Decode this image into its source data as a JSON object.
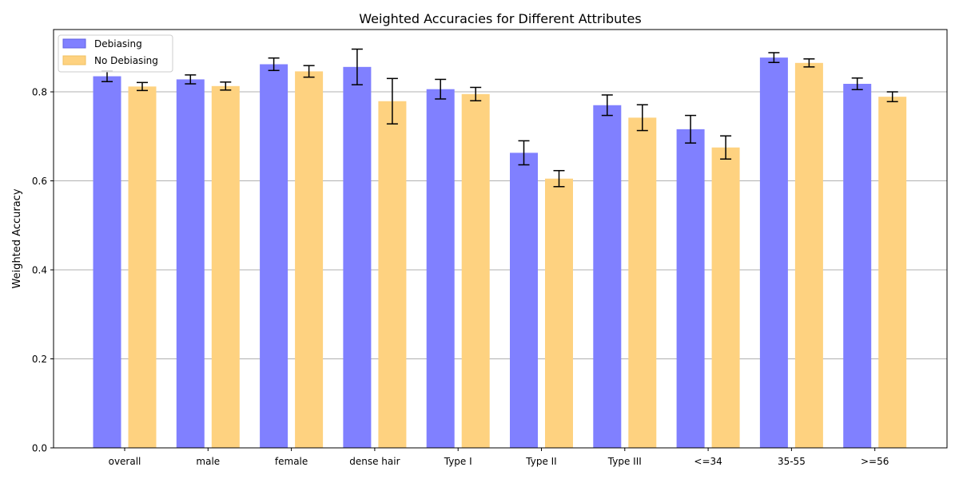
{
  "chart_data": {
    "type": "bar",
    "title": "Weighted Accuracies for Different Attributes",
    "xlabel": "",
    "ylabel": "Weighted Accuracy",
    "ylim": [
      0,
      0.94
    ],
    "yticks": [
      "0.0",
      "0.2",
      "0.4",
      "0.6",
      "0.8"
    ],
    "ytick_values": [
      0,
      0.2,
      0.4,
      0.6,
      0.8
    ],
    "grid": "y",
    "legend_position": "top-left",
    "categories": [
      "overall",
      "male",
      "female",
      "dense hair",
      "Type I",
      "Type II",
      "Type III",
      "<=34",
      "35-55",
      ">=56"
    ],
    "series": [
      {
        "name": "Debiasing",
        "color": "#8080ff",
        "values": [
          0.835,
          0.828,
          0.862,
          0.856,
          0.806,
          0.663,
          0.77,
          0.716,
          0.877,
          0.818
        ],
        "errors": [
          0.012,
          0.01,
          0.014,
          0.04,
          0.022,
          0.027,
          0.023,
          0.031,
          0.011,
          0.013
        ]
      },
      {
        "name": "No Debiasing",
        "color": "#fed280",
        "values": [
          0.812,
          0.813,
          0.846,
          0.779,
          0.795,
          0.605,
          0.742,
          0.675,
          0.865,
          0.789
        ],
        "errors": [
          0.009,
          0.009,
          0.013,
          0.051,
          0.015,
          0.018,
          0.029,
          0.026,
          0.009,
          0.011
        ]
      }
    ]
  }
}
